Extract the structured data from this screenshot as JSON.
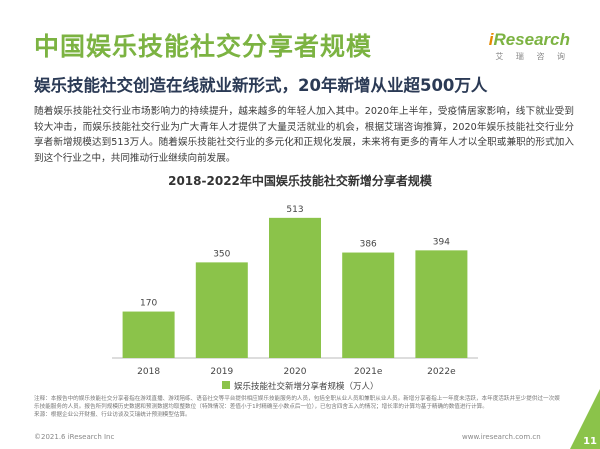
{
  "header": {
    "title": "中国娱乐技能社交分享者规模",
    "logo_i": "i",
    "logo_rest": "Research",
    "logo_sub": "艾 瑞 咨 询"
  },
  "subtitle": "娱乐技能社交创造在线就业新形式，20年新增从业超500万人",
  "paragraph": "随着娱乐技能社交行业市场影响力的持续提升，越来越多的年轻人加入其中。2020年上半年，受疫情居家影响，线下就业受到较大冲击，而娱乐技能社交行业为广大青年人才提供了大量灵活就业的机会，根据艾瑞咨询推算，2020年娱乐技能社交行业分享者新增规模达到513万人。随着娱乐技能社交行业的多元化和正规化发展，未来将有更多的青年人才以全职或兼职的形式加入到这个行业之中，共同推动行业继续向前发展。",
  "chart_data": {
    "type": "bar",
    "title": "2018-2022年中国娱乐技能社交新增分享者规模",
    "categories": [
      "2018",
      "2019",
      "2020",
      "2021e",
      "2022e"
    ],
    "series": [
      {
        "name": "娱乐技能社交新增分享者规模（万人）",
        "values": [
          170,
          350,
          513,
          386,
          394
        ]
      }
    ],
    "ylim": [
      0,
      560
    ],
    "colors": [
      "#8bc34a",
      "#8bc34a",
      "#8bc34a",
      "#8bc34a",
      "#8bc34a"
    ],
    "legend_position": "bottom"
  },
  "note": "注释：本报告中的娱乐技能社交分享者指在游戏直播、游戏陪练、语音社交等平台提供相应娱乐技能服务的人员，包括全职从业人员和兼职从业人员。新增分享者指上一年度未活跃，本年度活跃并至少提供过一次娱乐技能服务的人员。报告所列规模历史数据和预测数据均取整数位（特殊情况：差值小于1时精确至小数点后一位），已包含四舍五入的情况；增长率的计算均基于精确的数值进行计算。",
  "source": "来源：根据企业公开财报、行业访谈及艾瑞统计预测模型估算。",
  "footer": {
    "copyright": "©2021.6 iResearch Inc",
    "website": "www.iresearch.com.cn",
    "page": "11"
  }
}
